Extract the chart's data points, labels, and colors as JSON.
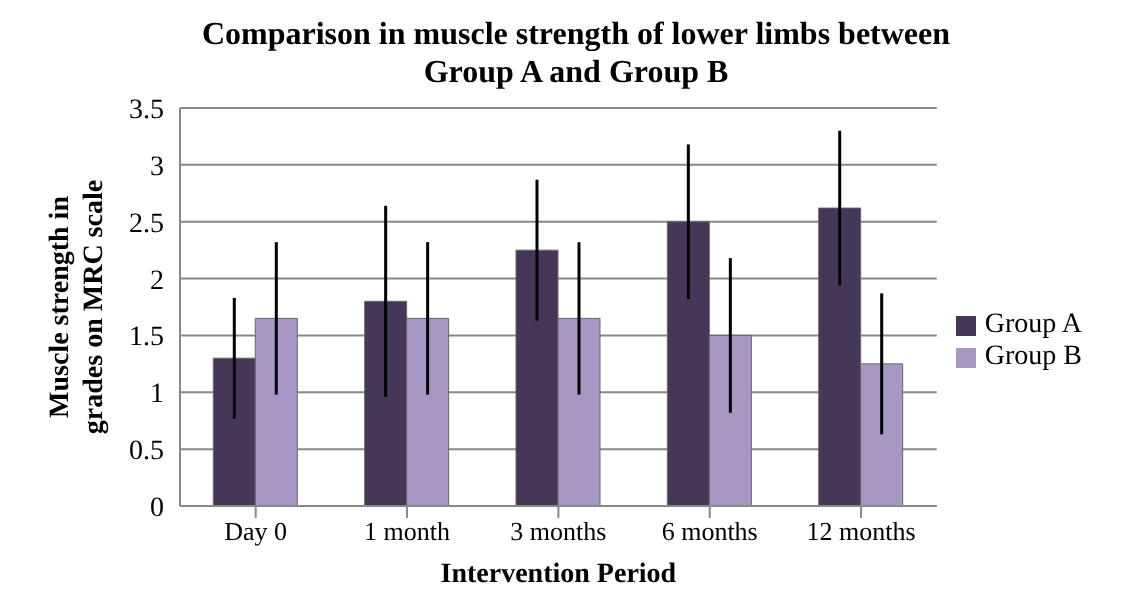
{
  "chart_data": {
    "type": "bar",
    "title": "Comparison in muscle strength of lower limbs between Group A and Group B",
    "xlabel": "Intervention Period",
    "ylabel": "Muscle strength in grades on MRC scale",
    "categories": [
      "Day 0",
      "1 month",
      "3 months",
      "6 months",
      "12 months"
    ],
    "series": [
      {
        "name": "Group A",
        "color": "#463758",
        "values": [
          1.3,
          1.8,
          2.25,
          2.5,
          2.62
        ],
        "errors": [
          0.53,
          0.84,
          0.62,
          0.68,
          0.68
        ]
      },
      {
        "name": "Group B",
        "color": "#a897c4",
        "values": [
          1.65,
          1.65,
          1.65,
          1.5,
          1.25
        ],
        "errors": [
          0.67,
          0.67,
          0.67,
          0.68,
          0.62
        ]
      }
    ],
    "ylim": [
      0,
      3.5
    ],
    "yticks": [
      0,
      0.5,
      1,
      1.5,
      2,
      2.5,
      3,
      3.5
    ],
    "grid": "y",
    "legend": "right"
  }
}
